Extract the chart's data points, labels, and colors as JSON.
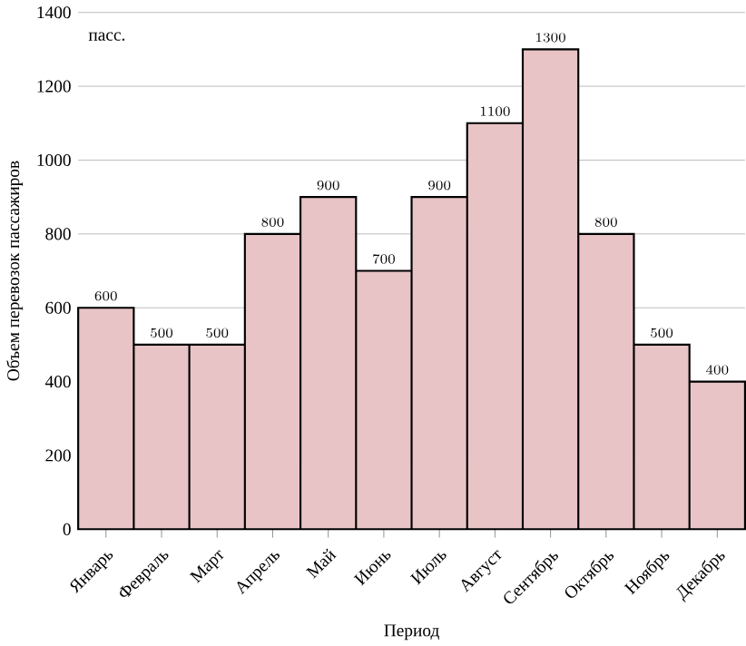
{
  "chart_data": {
    "type": "bar",
    "xlabel": "Период",
    "ylabel": "Объем перевозок пассажиров",
    "annotations": [
      "пасс."
    ],
    "categories": [
      "Январь",
      "Февраль",
      "Март",
      "Апрель",
      "Май",
      "Июнь",
      "Июль",
      "Август",
      "Сентябрь",
      "Октябрь",
      "Ноябрь",
      "Декабрь"
    ],
    "values": [
      600,
      500,
      500,
      800,
      900,
      700,
      900,
      1100,
      1300,
      800,
      500,
      400
    ],
    "color": "#e8c4c6",
    "ylim": [
      0,
      1400
    ],
    "yticks": [
      0,
      200,
      400,
      600,
      800,
      1000,
      1200,
      1400
    ],
    "grid": "y",
    "data_labels": true
  }
}
